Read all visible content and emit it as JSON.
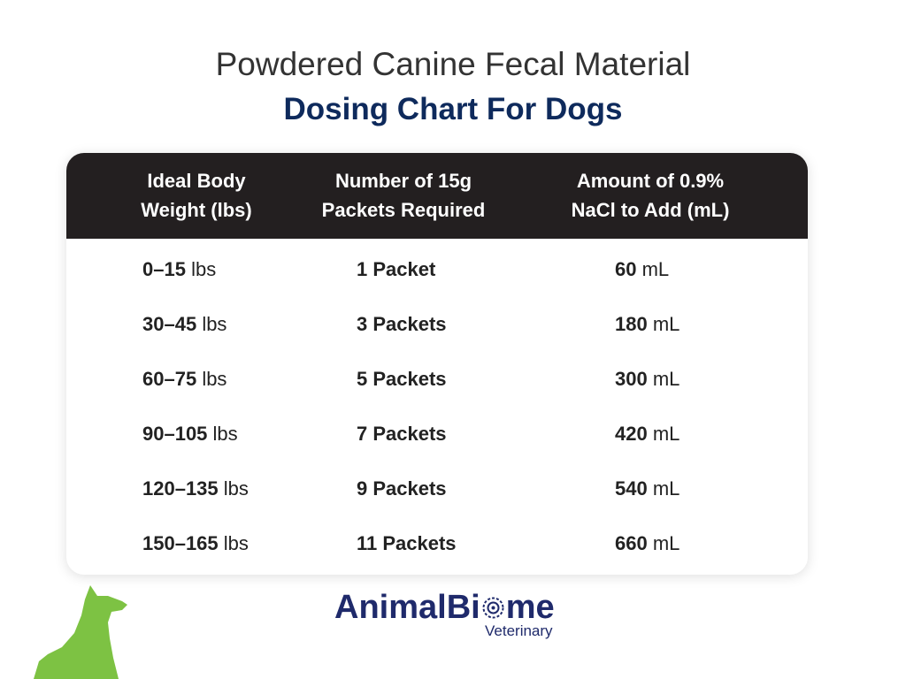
{
  "header": {
    "title": "Powdered Canine Fecal Material",
    "subtitle": "Dosing Chart For Dogs"
  },
  "table": {
    "columns": [
      [
        "Ideal Body",
        "Weight (lbs)"
      ],
      [
        "Number of 15g",
        "Packets Required"
      ],
      [
        "Amount of 0.9%",
        "NaCl to Add (mL)"
      ]
    ],
    "rows": [
      [
        {
          "bold": "0–15",
          "unit": "lbs"
        },
        {
          "bold": "1 Packet"
        },
        {
          "bold": "60",
          "unit": "mL"
        }
      ],
      [
        {
          "bold": "30–45",
          "unit": "lbs"
        },
        {
          "bold": "3 Packets"
        },
        {
          "bold": "180",
          "unit": "mL"
        }
      ],
      [
        {
          "bold": "60–75",
          "unit": "lbs"
        },
        {
          "bold": "5 Packets"
        },
        {
          "bold": "300",
          "unit": "mL"
        }
      ],
      [
        {
          "bold": "90–105",
          "unit": "lbs"
        },
        {
          "bold": "7 Packets"
        },
        {
          "bold": "420",
          "unit": "mL"
        }
      ],
      [
        {
          "bold": "120–135",
          "unit": "lbs"
        },
        {
          "bold": "9 Packets"
        },
        {
          "bold": "540",
          "unit": "mL"
        }
      ],
      [
        {
          "bold": "150–165",
          "unit": "lbs"
        },
        {
          "bold": "11 Packets"
        },
        {
          "bold": "660",
          "unit": "mL"
        }
      ]
    ]
  },
  "logo": {
    "name_start": "AnimalBi",
    "name_end": "me",
    "tagline": "Veterinary"
  }
}
